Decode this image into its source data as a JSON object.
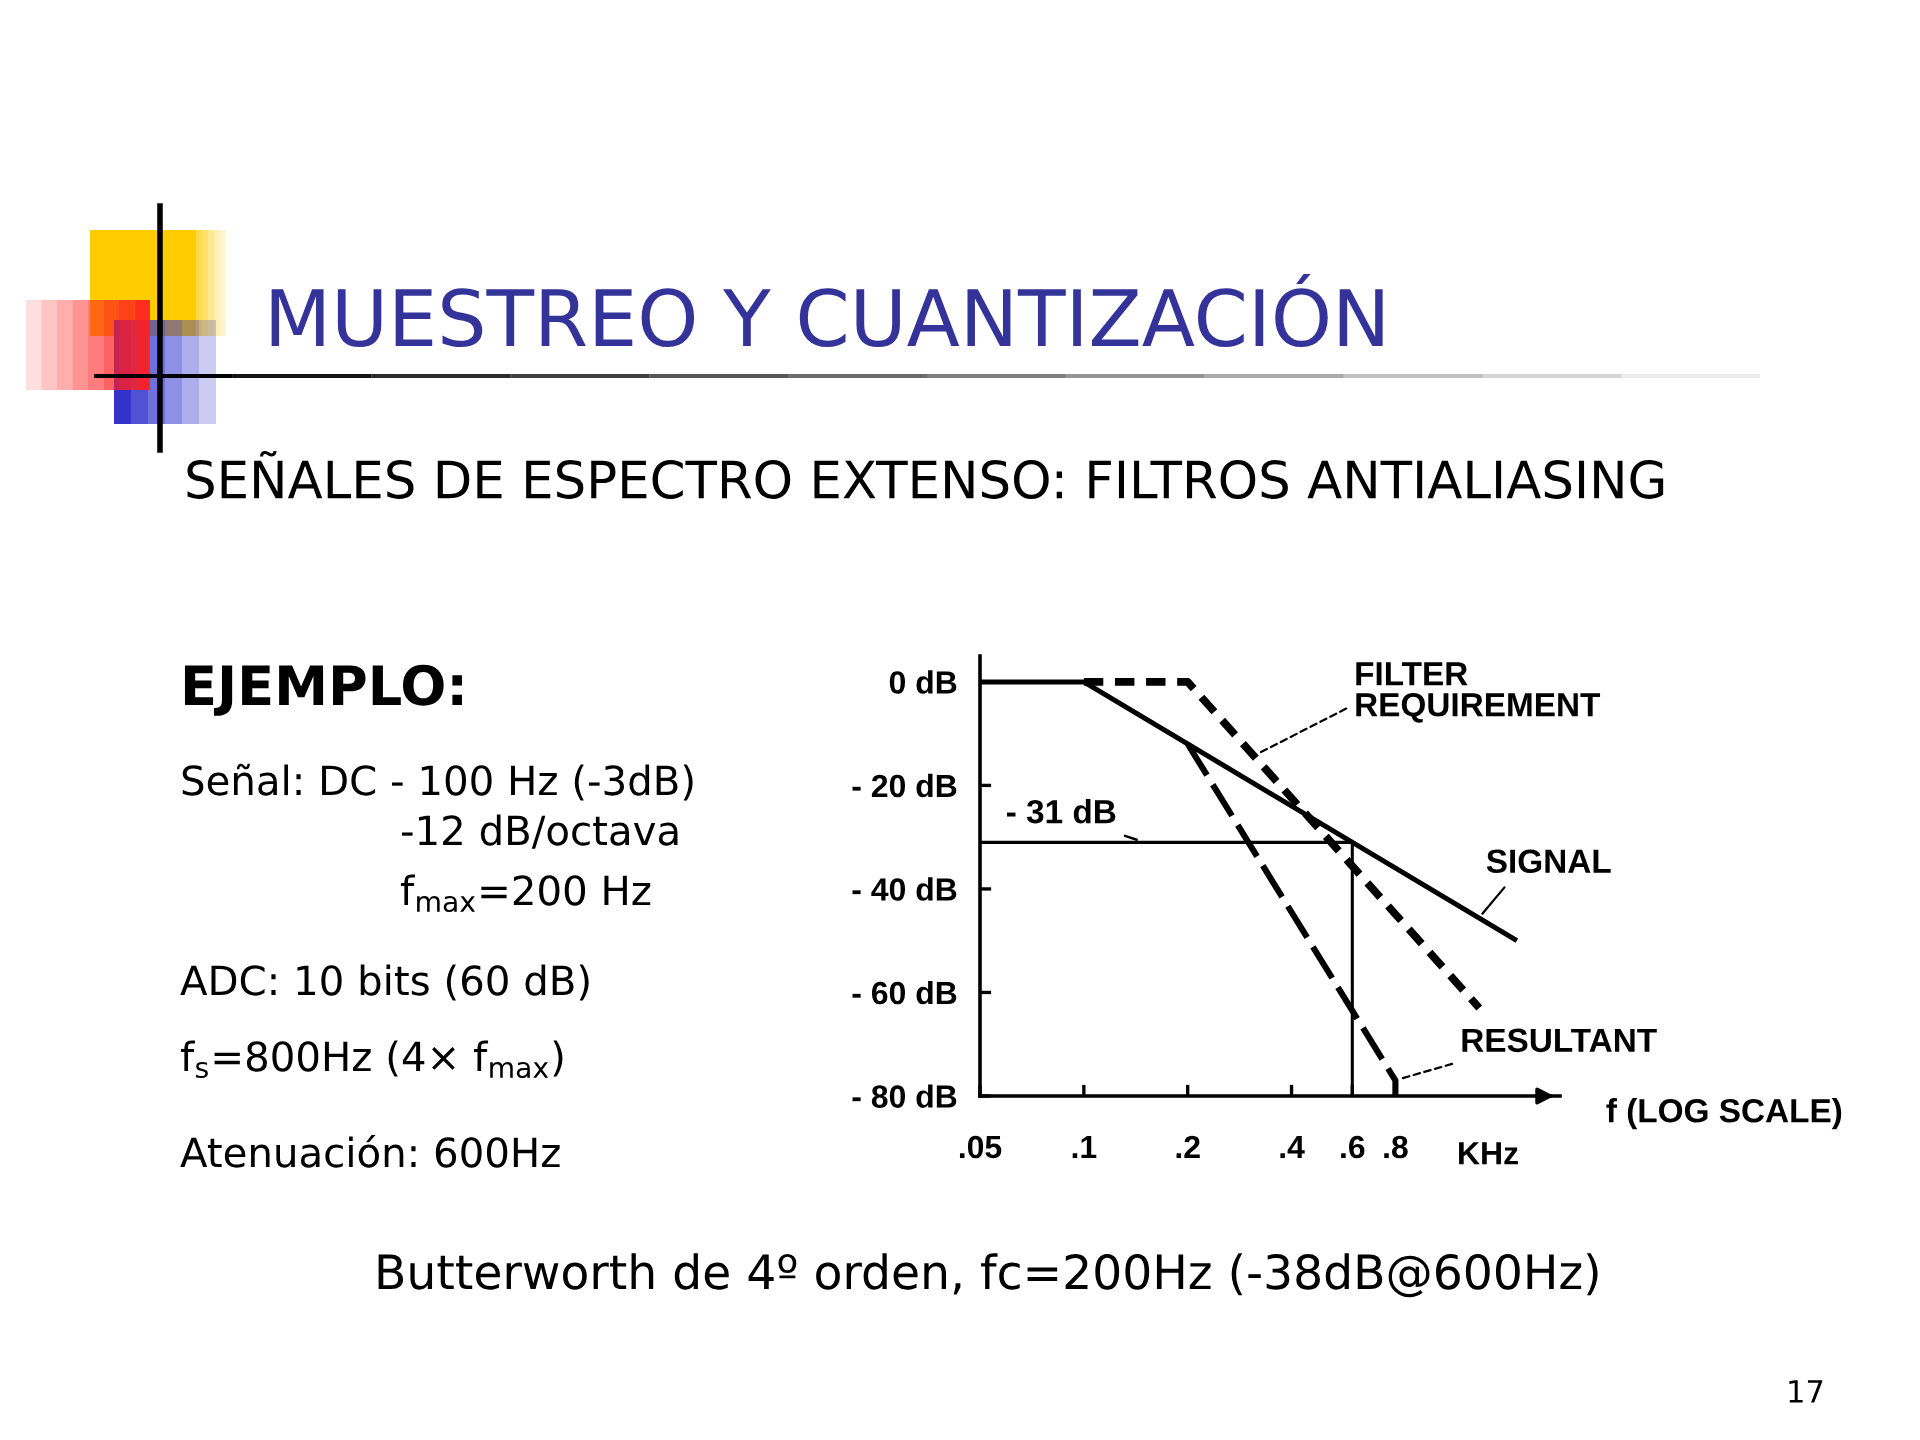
{
  "chart_data": {
    "type": "line",
    "title": "MUESTREO Y CUANTIZACIÓN",
    "subtitle": "SEÑALES DE ESPECTRO EXTENSO: FILTROS ANTIALIASING",
    "xlabel": "f (LOG SCALE)",
    "log": "x",
    "legend": false,
    "xlim": [
      0.05,
      2.4
    ],
    "xticks": [
      {
        "value": 0.05,
        "label": ".05"
      },
      {
        "value": 0.1,
        "label": ".1"
      },
      {
        "value": 0.2,
        "label": ".2"
      },
      {
        "value": 0.4,
        "label": ".4"
      },
      {
        "value": 0.6,
        "label": ".6"
      },
      {
        "value": 0.8,
        "label": ".8"
      }
    ],
    "ylim": [
      -80,
      5
    ],
    "yticks": [
      {
        "value": 0,
        "label": "0 dB"
      },
      {
        "value": -20,
        "label": "- 20 dB"
      },
      {
        "value": -40,
        "label": "- 40 dB"
      },
      {
        "value": -60,
        "label": "- 60 dB"
      },
      {
        "value": -80,
        "label": "- 80 dB"
      }
    ],
    "series": [
      {
        "name": "FILTER\nREQUIREMENT",
        "line_style": "dashed",
        "color": "#000000",
        "x": [
          0.1,
          0.2,
          1.4
        ],
        "values": [
          0,
          0,
          -63
        ]
      },
      {
        "name": "SIGNAL",
        "line_style": "solid",
        "color": "#000000",
        "x": [
          0.05,
          0.1,
          1.8
        ],
        "values": [
          0,
          0,
          -50
        ]
      },
      {
        "name": "RESULTANT",
        "line_style": "dashed",
        "color": "#000000",
        "x": [
          0.2,
          0.8,
          0.8
        ],
        "values": [
          -12,
          -77,
          -80
        ]
      },
      {
        "line_style": "solid",
        "color": "#000000",
        "x": [
          0.05,
          0.6,
          0.6
        ],
        "values": [
          -31,
          -31,
          -80
        ]
      }
    ],
    "annotations": [
      {
        "text": "- 31 dB",
        "x": 0.15,
        "y": -31
      },
      "KHz",
      "EJEMPLO:",
      "Señal: DC - 100 Hz (-3dB)",
      "-12 dB/octava",
      "f$_{max}$=200 Hz",
      "ADC: 10 bits (60 dB)",
      "f$_{s}$=800Hz (4× f$_{max}$)",
      "Atenuación: 600Hz",
      "Butterworth de 4º orden, fc=200Hz (-38dB@600Hz)",
      "17"
    ]
  }
}
